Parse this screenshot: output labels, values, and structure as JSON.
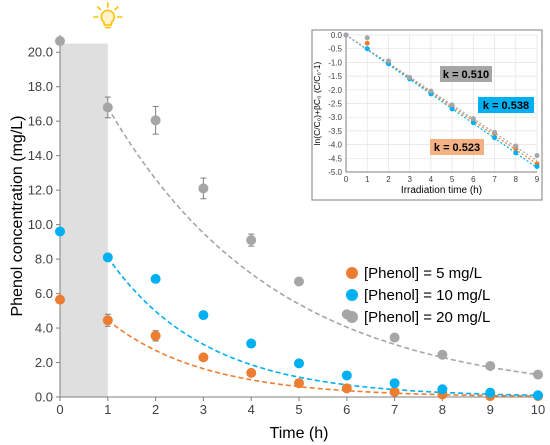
{
  "chart_data": [
    {
      "type": "scatter",
      "xlabel": "Time (h)",
      "ylabel": "Phenol concentration (mg/L)",
      "xlim": [
        0,
        10
      ],
      "ylim": [
        0,
        21
      ],
      "x_ticks": [
        "0",
        "1",
        "2",
        "3",
        "4",
        "5",
        "6",
        "7",
        "8",
        "9",
        "10"
      ],
      "y_ticks": [
        "0.0",
        "2.0",
        "4.0",
        "6.0",
        "8.0",
        "10.0",
        "12.0",
        "14.0",
        "16.0",
        "18.0",
        "20.0"
      ],
      "dark_period": [
        0,
        1
      ],
      "light_icon": "lightbulb-icon",
      "legend_position": "right",
      "series": [
        {
          "name": "[Phenol] = 5 mg/L",
          "color": "#ED7D31",
          "x": [
            0,
            1,
            2,
            3,
            4,
            5,
            6,
            7,
            8,
            9,
            10
          ],
          "y": [
            5.65,
            4.45,
            3.55,
            2.3,
            1.4,
            0.8,
            0.5,
            0.3,
            0.15,
            0.05,
            0.05
          ],
          "err": [
            0,
            0.35,
            0.3,
            0,
            0,
            0,
            0,
            0,
            0,
            0,
            0
          ],
          "fit_x": [
            1,
            10
          ],
          "fit_k": 0.523
        },
        {
          "name": "[Phenol] = 10 mg/L",
          "color": "#00B0F0",
          "x": [
            0,
            1,
            2,
            3,
            4,
            5,
            6,
            7,
            8,
            9,
            10
          ],
          "y": [
            9.6,
            8.1,
            6.85,
            4.75,
            3.1,
            1.95,
            1.25,
            0.8,
            0.45,
            0.25,
            0.1
          ],
          "err": [
            0,
            0,
            0,
            0,
            0,
            0,
            0,
            0,
            0,
            0,
            0
          ],
          "fit_x": [
            1,
            10
          ],
          "fit_k": 0.538
        },
        {
          "name": "[Phenol] = 20 mg/L",
          "color": "#A6A6A6",
          "x": [
            0,
            1,
            2,
            3,
            4,
            5,
            6,
            7,
            8,
            9,
            10
          ],
          "y": [
            20.65,
            16.8,
            16.05,
            12.1,
            9.1,
            6.7,
            4.8,
            3.45,
            2.45,
            1.8,
            1.3
          ],
          "err": [
            0,
            0.6,
            0.8,
            0.6,
            0.35,
            0,
            0,
            0,
            0,
            0,
            0
          ],
          "fit_x": [
            1,
            10
          ],
          "fit_k": 0.51
        }
      ]
    },
    {
      "type": "scatter",
      "xlabel": "Irradiation time (h)",
      "ylabel": "ln(C/C₀)+βC₀ (C/C₀-1)",
      "xlim": [
        0,
        9
      ],
      "ylim": [
        -5.0,
        0.0
      ],
      "x_ticks": [
        "0",
        "1",
        "2",
        "3",
        "4",
        "5",
        "6",
        "7",
        "8",
        "9"
      ],
      "y_ticks": [
        "0.0",
        "-0.5",
        "-1.0",
        "-1.5",
        "-2.0",
        "-2.5",
        "-3.0",
        "-3.5",
        "-4.0",
        "-4.5",
        "-5.0"
      ],
      "grid": true,
      "series": [
        {
          "color": "#ED7D31",
          "x": [
            0,
            1,
            2,
            3,
            4,
            5,
            6,
            7,
            8,
            9
          ],
          "y": [
            0.0,
            -0.3,
            -1.0,
            -1.55,
            -2.1,
            -2.65,
            -3.1,
            -3.6,
            -4.15,
            -4.7
          ],
          "k": 0.523
        },
        {
          "color": "#00B0F0",
          "x": [
            0,
            1,
            2,
            3,
            4,
            5,
            6,
            7,
            8,
            9
          ],
          "y": [
            0.0,
            -0.5,
            -1.05,
            -1.6,
            -2.15,
            -2.7,
            -3.2,
            -3.75,
            -4.3,
            -4.8
          ],
          "k": 0.538
        },
        {
          "color": "#A6A6A6",
          "x": [
            0,
            1,
            2,
            3,
            4,
            5,
            6,
            7,
            8,
            9
          ],
          "y": [
            0.0,
            -0.1,
            -0.95,
            -1.55,
            -2.05,
            -2.55,
            -3.05,
            -3.55,
            -4.05,
            -4.4
          ],
          "k": 0.51
        }
      ],
      "annotations": [
        {
          "text": "k = 0.510",
          "color": "#A6A6A6"
        },
        {
          "text": "k = 0.538",
          "color": "#00B0F0"
        },
        {
          "text": "k = 0.523",
          "color": "#F4B183"
        }
      ]
    }
  ]
}
